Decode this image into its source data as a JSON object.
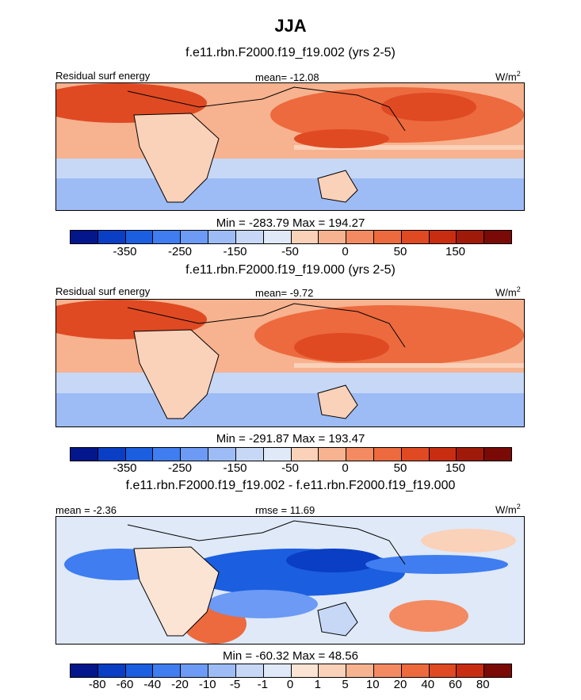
{
  "figure": {
    "title": "JJA"
  },
  "chart_data": [
    {
      "type": "heatmap",
      "case_label": "f.e11.rbn.F2000.f19_f19.002 (yrs 2-5)",
      "left_label": "Residual surf energy",
      "center_label": "mean= -12.08",
      "units_label": "W/m",
      "units_sup": "2",
      "stats_label": "Min = -283.79 Max = 194.27",
      "min": -283.79,
      "max": 194.27,
      "mean": -12.08,
      "colorbar_labels": [
        "-350",
        "-250",
        "-150",
        "-50",
        "0",
        "50",
        "150"
      ],
      "colorbar_colors": [
        "#04168c",
        "#0a3ec4",
        "#1b5ee0",
        "#3f7df0",
        "#6c9af4",
        "#9dbcf5",
        "#c6d8f6",
        "#dfe9f7",
        "#fad1b9",
        "#f7b28f",
        "#f48a62",
        "#ec6a3e",
        "#df4a23",
        "#c82d12",
        "#a01a0a",
        "#7a0a05"
      ]
    },
    {
      "type": "heatmap",
      "case_label": "f.e11.rbn.F2000.f19_f19.000 (yrs 2-5)",
      "left_label": "Residual surf energy",
      "center_label": "mean=  -9.72",
      "units_label": "W/m",
      "units_sup": "2",
      "stats_label": "Min = -291.87 Max = 193.47",
      "min": -291.87,
      "max": 193.47,
      "mean": -9.72,
      "colorbar_labels": [
        "-350",
        "-250",
        "-150",
        "-50",
        "0",
        "50",
        "150"
      ],
      "colorbar_colors": [
        "#04168c",
        "#0a3ec4",
        "#1b5ee0",
        "#3f7df0",
        "#6c9af4",
        "#9dbcf5",
        "#c6d8f6",
        "#dfe9f7",
        "#fad1b9",
        "#f7b28f",
        "#f48a62",
        "#ec6a3e",
        "#df4a23",
        "#c82d12",
        "#a01a0a",
        "#7a0a05"
      ]
    },
    {
      "type": "heatmap",
      "case_label": "f.e11.rbn.F2000.f19_f19.002 - f.e11.rbn.F2000.f19_f19.000",
      "left_label": "mean =  -2.36",
      "center_label": "rmse =  11.69",
      "units_label": "W/m",
      "units_sup": "2",
      "stats_label": "Min = -60.32 Max =  48.56",
      "min": -60.32,
      "max": 48.56,
      "mean": -2.36,
      "rmse": 11.69,
      "colorbar_labels": [
        "-80",
        "-60",
        "-40",
        "-20",
        "-10",
        "-5",
        "-1",
        "0",
        "1",
        "5",
        "10",
        "20",
        "40",
        "60",
        "80"
      ],
      "colorbar_colors": [
        "#04168c",
        "#0a3ec4",
        "#1b5ee0",
        "#3f7df0",
        "#6c9af4",
        "#9dbcf5",
        "#c6d8f6",
        "#dfe9f7",
        "#fbe4d4",
        "#fad1b9",
        "#f7b28f",
        "#f48a62",
        "#ec6a3e",
        "#df4a23",
        "#c82d12",
        "#7a0a05"
      ]
    }
  ]
}
